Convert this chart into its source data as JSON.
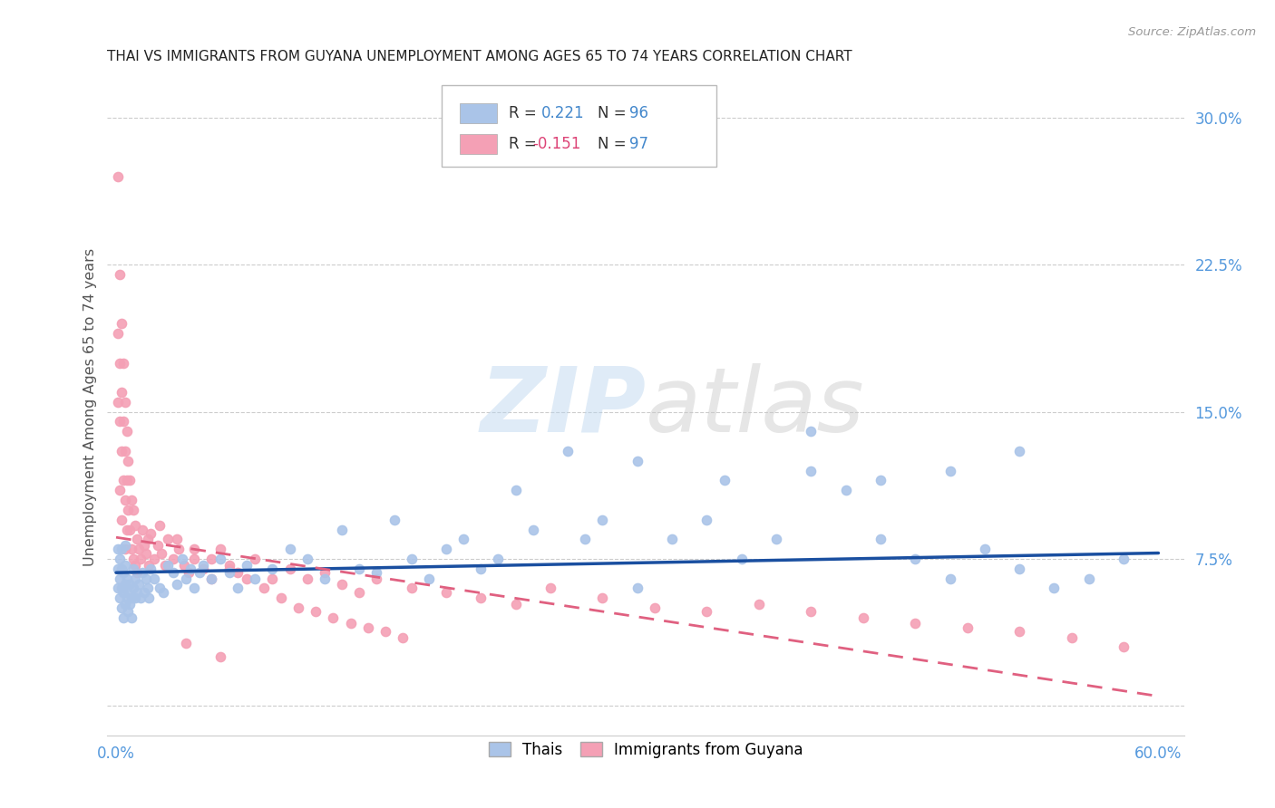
{
  "title": "THAI VS IMMIGRANTS FROM GUYANA UNEMPLOYMENT AMONG AGES 65 TO 74 YEARS CORRELATION CHART",
  "source": "Source: ZipAtlas.com",
  "ylabel": "Unemployment Among Ages 65 to 74 years",
  "xlim": [
    -0.005,
    0.615
  ],
  "ylim": [
    -0.015,
    0.32
  ],
  "xticks": [
    0.0,
    0.6
  ],
  "xticklabels": [
    "0.0%",
    "60.0%"
  ],
  "right_yticks": [
    0.0,
    0.075,
    0.15,
    0.225,
    0.3
  ],
  "right_yticklabels": [
    "",
    "7.5%",
    "15.0%",
    "22.5%",
    "30.0%"
  ],
  "thai_color": "#aac4e8",
  "guyana_color": "#f4a0b5",
  "thai_line_color": "#1a4fa0",
  "guyana_line_color": "#e06080",
  "watermark_zip": "ZIP",
  "watermark_atlas": "atlas",
  "grid_color": "#cccccc",
  "background_color": "#ffffff",
  "thai_trend_x": [
    0.0,
    0.6
  ],
  "thai_trend_y": [
    0.068,
    0.078
  ],
  "guyana_trend_x": [
    0.0,
    0.6
  ],
  "guyana_trend_y": [
    0.086,
    0.005
  ]
}
